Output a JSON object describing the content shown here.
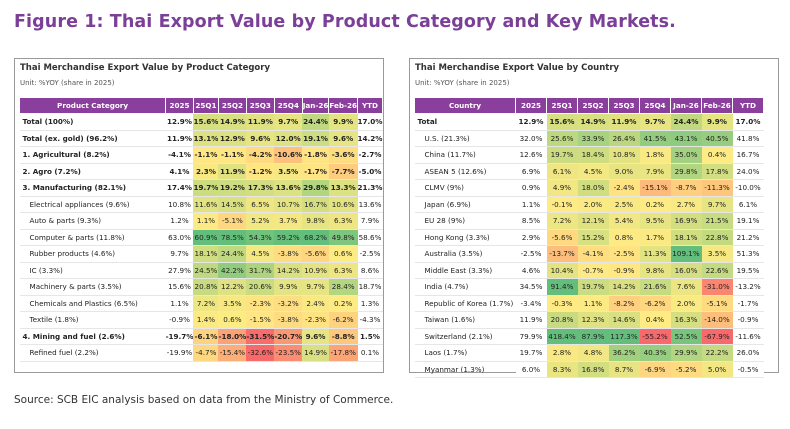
{
  "figure_title": "Figure 1: Thai Export Value by Product Category and Key Markets.",
  "colors": {
    "accent": "#8b3f9c",
    "title": "#7b3f98",
    "low": "#f8696b",
    "mid": "#ffeb84",
    "high": "#63be7b"
  },
  "left": {
    "title": "Thai Merchandise Export Value by Product Category",
    "unit": "Unit: %YOY (share in 2025)",
    "headers": [
      "Product Category",
      "2025",
      "25Q1",
      "25Q2",
      "25Q3",
      "25Q4",
      "Jan-26",
      "Feb-26",
      "YTD"
    ],
    "rows": [
      {
        "label": "Total (100%)",
        "bold": true,
        "indent": false,
        "values": [
          "12.9%",
          "15.6%",
          "14.9%",
          "11.9%",
          "9.7%",
          "24.4%",
          "9.9%",
          "17.0%"
        ]
      },
      {
        "label": "Total (ex. gold) (96.2%)",
        "bold": true,
        "indent": false,
        "values": [
          "11.9%",
          "13.1%",
          "12.9%",
          "9.6%",
          "12.0%",
          "19.1%",
          "9.6%",
          "14.2%"
        ]
      },
      {
        "label": "1. Agricultural (8.2%)",
        "bold": true,
        "indent": false,
        "values": [
          "-4.1%",
          "-1.1%",
          "-1.1%",
          "-4.2%",
          "-10.6%",
          "-1.8%",
          "-3.6%",
          "-2.7%"
        ]
      },
      {
        "label": "2. Agro (7.2%)",
        "bold": true,
        "indent": false,
        "values": [
          "4.1%",
          "2.3%",
          "11.9%",
          "-1.2%",
          "3.5%",
          "-1.7%",
          "-7.7%",
          "-5.0%"
        ]
      },
      {
        "label": "3. Manufacturing (82.1%)",
        "bold": true,
        "indent": false,
        "values": [
          "17.4%",
          "19.7%",
          "19.2%",
          "17.3%",
          "13.6%",
          "29.8%",
          "13.3%",
          "21.3%"
        ]
      },
      {
        "label": "Electrical appliances (9.6%)",
        "bold": false,
        "indent": true,
        "values": [
          "10.8%",
          "11.6%",
          "14.5%",
          "6.5%",
          "10.7%",
          "16.7%",
          "10.6%",
          "13.6%"
        ]
      },
      {
        "label": "Auto & parts (9.3%)",
        "bold": false,
        "indent": true,
        "values": [
          "1.2%",
          "1.1%",
          "-5.1%",
          "5.2%",
          "3.7%",
          "9.8%",
          "6.3%",
          "7.9%"
        ]
      },
      {
        "label": "Computer & parts (11.8%)",
        "bold": false,
        "indent": true,
        "values": [
          "63.0%",
          "60.9%",
          "78.5%",
          "54.3%",
          "59.2%",
          "68.2%",
          "49.8%",
          "58.6%"
        ]
      },
      {
        "label": "Rubber products (4.6%)",
        "bold": false,
        "indent": true,
        "values": [
          "9.7%",
          "18.1%",
          "24.4%",
          "4.5%",
          "-3.8%",
          "-5.6%",
          "0.6%",
          "-2.5%"
        ]
      },
      {
        "label": "IC (3.3%)",
        "bold": false,
        "indent": true,
        "values": [
          "27.9%",
          "24.5%",
          "42.2%",
          "31.7%",
          "14.2%",
          "10.9%",
          "6.3%",
          "8.6%"
        ]
      },
      {
        "label": "Machinery & parts (3.5%)",
        "bold": false,
        "indent": true,
        "values": [
          "15.6%",
          "20.8%",
          "12.2%",
          "20.6%",
          "9.9%",
          "9.7%",
          "28.4%",
          "18.7%"
        ]
      },
      {
        "label": "Chemicals and Plastics (6.5%)",
        "bold": false,
        "indent": true,
        "values": [
          "1.1%",
          "7.2%",
          "3.5%",
          "-2.3%",
          "-3.2%",
          "2.4%",
          "0.2%",
          "1.3%"
        ]
      },
      {
        "label": "Textile (1.8%)",
        "bold": false,
        "indent": true,
        "values": [
          "-0.9%",
          "1.4%",
          "0.6%",
          "-1.5%",
          "-3.8%",
          "-2.3%",
          "-6.2%",
          "-4.3%"
        ]
      },
      {
        "label": "4. Mining and fuel (2.6%)",
        "bold": true,
        "indent": false,
        "values": [
          "-19.7%",
          "-6.1%",
          "-18.0%",
          "-31.5%",
          "-20.7%",
          "9.6%",
          "-8.8%",
          "1.5%"
        ]
      },
      {
        "label": "Refined fuel (2.2%)",
        "bold": false,
        "indent": true,
        "values": [
          "-19.9%",
          "-4.7%",
          "-15.4%",
          "-32.6%",
          "-23.5%",
          "14.9%",
          "-17.8%",
          "0.1%"
        ]
      }
    ]
  },
  "right": {
    "title": "Thai Merchandise Export Value by Country",
    "unit": "Unit: %YOY (share in 2025)",
    "headers": [
      "Country",
      "2025",
      "25Q1",
      "25Q2",
      "25Q3",
      "25Q4",
      "Jan-26",
      "Feb-26",
      "YTD"
    ],
    "rows": [
      {
        "label": "Total",
        "bold": true,
        "indent": false,
        "values": [
          "12.9%",
          "15.6%",
          "14.9%",
          "11.9%",
          "9.7%",
          "24.4%",
          "9.9%",
          "17.0%"
        ]
      },
      {
        "label": "U.S. (21.3%)",
        "bold": false,
        "indent": true,
        "values": [
          "32.0%",
          "25.6%",
          "33.9%",
          "26.4%",
          "41.5%",
          "43.1%",
          "40.5%",
          "41.8%"
        ]
      },
      {
        "label": "China (11.7%)",
        "bold": false,
        "indent": true,
        "values": [
          "12.6%",
          "19.7%",
          "18.4%",
          "10.8%",
          "1.8%",
          "35.0%",
          "0.4%",
          "16.7%"
        ]
      },
      {
        "label": "ASEAN 5 (12.6%)",
        "bold": false,
        "indent": true,
        "values": [
          "6.9%",
          "6.1%",
          "4.5%",
          "9.0%",
          "7.9%",
          "29.8%",
          "17.8%",
          "24.0%"
        ]
      },
      {
        "label": "CLMV (9%)",
        "bold": false,
        "indent": true,
        "values": [
          "0.9%",
          "4.9%",
          "18.0%",
          "-2.4%",
          "-15.1%",
          "-8.7%",
          "-11.3%",
          "-10.0%"
        ]
      },
      {
        "label": "Japan (6.9%)",
        "bold": false,
        "indent": true,
        "values": [
          "1.1%",
          "-0.1%",
          "2.0%",
          "2.5%",
          "0.2%",
          "2.7%",
          "9.7%",
          "6.1%"
        ]
      },
      {
        "label": "EU 28 (9%)",
        "bold": false,
        "indent": true,
        "values": [
          "8.5%",
          "7.2%",
          "12.1%",
          "5.4%",
          "9.5%",
          "16.9%",
          "21.5%",
          "19.1%"
        ]
      },
      {
        "label": "Hong Kong (3.3%)",
        "bold": false,
        "indent": true,
        "values": [
          "2.9%",
          "-5.6%",
          "15.2%",
          "0.8%",
          "1.7%",
          "18.1%",
          "22.8%",
          "21.2%"
        ]
      },
      {
        "label": "Australia (3.5%)",
        "bold": false,
        "indent": true,
        "values": [
          "-2.5%",
          "-13.7%",
          "-4.1%",
          "-2.5%",
          "11.3%",
          "109.1%",
          "3.5%",
          "51.3%"
        ]
      },
      {
        "label": "Middle East (3.3%)",
        "bold": false,
        "indent": true,
        "values": [
          "4.6%",
          "10.4%",
          "-0.7%",
          "-0.9%",
          "9.8%",
          "16.0%",
          "22.6%",
          "19.5%"
        ]
      },
      {
        "label": "India (4.7%)",
        "bold": false,
        "indent": true,
        "values": [
          "34.5%",
          "91.4%",
          "19.7%",
          "14.2%",
          "21.6%",
          "7.6%",
          "-31.0%",
          "-13.2%"
        ]
      },
      {
        "label": "Republic of Korea (1.7%)",
        "bold": false,
        "indent": true,
        "values": [
          "-3.4%",
          "-0.3%",
          "1.1%",
          "-8.2%",
          "-6.2%",
          "2.0%",
          "-5.1%",
          "-1.7%"
        ]
      },
      {
        "label": "Taiwan (1.6%)",
        "bold": false,
        "indent": true,
        "values": [
          "11.9%",
          "20.8%",
          "12.3%",
          "14.6%",
          "0.4%",
          "16.3%",
          "-14.0%",
          "-0.9%"
        ]
      },
      {
        "label": "Switzerland (2.1%)",
        "bold": false,
        "indent": true,
        "values": [
          "79.9%",
          "418.4%",
          "87.9%",
          "117.3%",
          "-55.2%",
          "52.5%",
          "-67.9%",
          "-11.6%"
        ]
      },
      {
        "label": "Laos (1.7%)",
        "bold": false,
        "indent": true,
        "values": [
          "19.7%",
          "2.8%",
          "4.8%",
          "36.2%",
          "40.3%",
          "29.9%",
          "22.2%",
          "26.0%"
        ]
      },
      {
        "label": "Myanmar (1.3%)",
        "bold": false,
        "indent": true,
        "values": [
          "6.0%",
          "8.3%",
          "16.8%",
          "8.7%",
          "-6.9%",
          "-5.2%",
          "5.0%",
          "-0.5%"
        ]
      }
    ]
  },
  "source": "Source: SCB EIC analysis based on data from the Ministry of Commerce."
}
